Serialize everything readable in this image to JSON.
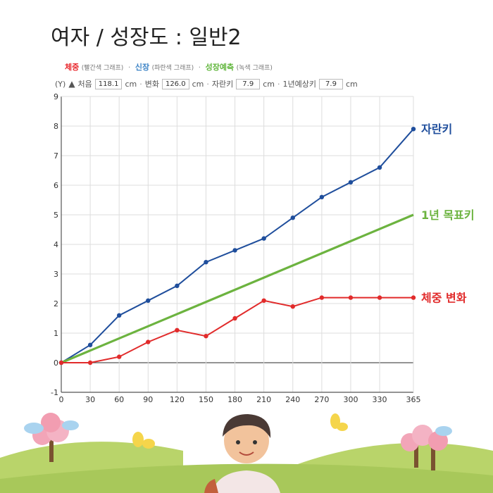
{
  "title": "여자 / 성장도 : 일반2",
  "legend": {
    "weight_label": "체중",
    "weight_note": "(빨간색 그래프)",
    "height_label": "신장",
    "height_note": "(파란색 그래프)",
    "growth_label": "성장예측",
    "growth_note": "(녹색 그래프)",
    "sep": "·"
  },
  "inputs": {
    "y_label": "(Y)",
    "first_label": "처음",
    "first_value": "118.1",
    "change_label": "변화",
    "change_value": "126.0",
    "grown_label": "자란키",
    "grown_value": "7.9",
    "predict_label": "1년예상키",
    "predict_value": "7.9",
    "unit": "cm"
  },
  "colors": {
    "height": "#1f4e9c",
    "target": "#6cb33f",
    "weight": "#e12b2b",
    "grid": "#dddddd",
    "axis": "#555555"
  },
  "chart_data": {
    "type": "line",
    "x": [
      0,
      30,
      60,
      90,
      120,
      150,
      180,
      210,
      240,
      270,
      300,
      330,
      365
    ],
    "xticks": [
      0,
      30,
      60,
      90,
      120,
      150,
      180,
      210,
      240,
      270,
      300,
      330,
      365
    ],
    "yticks": [
      -1,
      0,
      1,
      2,
      3,
      4,
      5,
      6,
      7,
      8,
      9
    ],
    "xlim": [
      0,
      365
    ],
    "ylim": [
      -1,
      9
    ],
    "grid": true,
    "series": [
      {
        "name": "자란키",
        "color": "#1f4e9c",
        "markers": true,
        "x": [
          0,
          30,
          60,
          90,
          120,
          150,
          180,
          210,
          240,
          270,
          300,
          330,
          365
        ],
        "values": [
          0,
          0.6,
          1.6,
          2.1,
          2.6,
          3.4,
          3.8,
          4.2,
          4.9,
          5.6,
          6.1,
          6.6,
          7.9
        ]
      },
      {
        "name": "1년 목표키",
        "color": "#6cb33f",
        "markers": false,
        "x": [
          0,
          365
        ],
        "values": [
          0,
          5
        ]
      },
      {
        "name": "체중 변화",
        "color": "#e12b2b",
        "markers": true,
        "x": [
          0,
          30,
          60,
          90,
          120,
          150,
          180,
          210,
          240,
          270,
          300,
          330,
          365
        ],
        "values": [
          0,
          0,
          0.2,
          0.7,
          1.1,
          0.9,
          1.5,
          2.1,
          1.9,
          2.2,
          2.2,
          2.2,
          2.2
        ]
      }
    ]
  }
}
